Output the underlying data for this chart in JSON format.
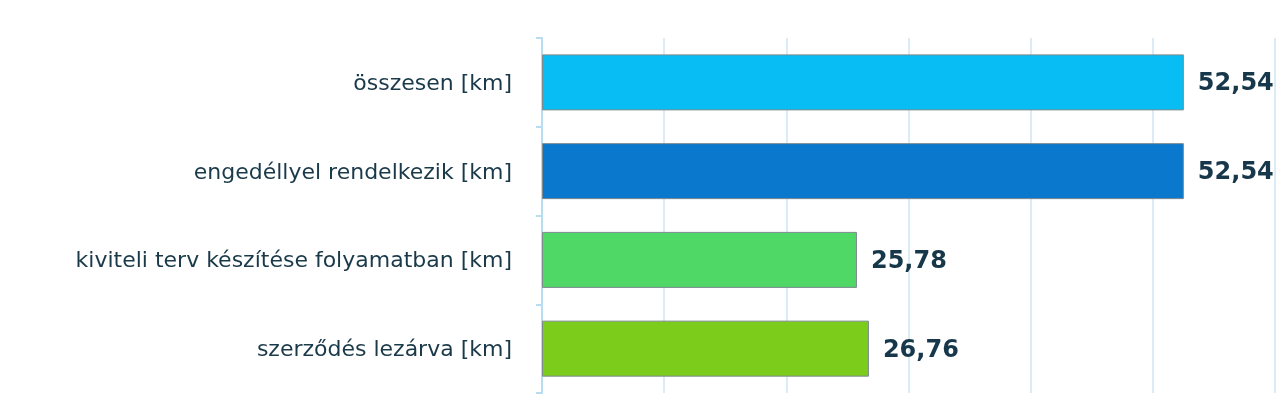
{
  "chart_data": {
    "type": "bar",
    "orientation": "horizontal",
    "categories": [
      "összesen [km]",
      "engedéllyel rendelkezik [km]",
      "kiviteli terv készítése folyamatban [km]",
      "szerződés lezárva [km]"
    ],
    "values": [
      52.54,
      52.54,
      25.78,
      26.76
    ],
    "colors": [
      "#08bcf4",
      "#0a78cc",
      "#4fd865",
      "#7ccc1c"
    ],
    "value_labels": [
      "52,54",
      "52,54",
      "25,78",
      "26,76"
    ],
    "xlim": [
      0,
      60
    ],
    "xticks": [
      {
        "value": 0,
        "label": null
      },
      {
        "value": 10,
        "label": null
      },
      {
        "value": 20,
        "label": null
      },
      {
        "value": 30,
        "label": null
      },
      {
        "value": 40,
        "label": null
      },
      {
        "value": 50,
        "label": null
      },
      {
        "value": 60,
        "label": null
      }
    ],
    "grid": "x"
  }
}
